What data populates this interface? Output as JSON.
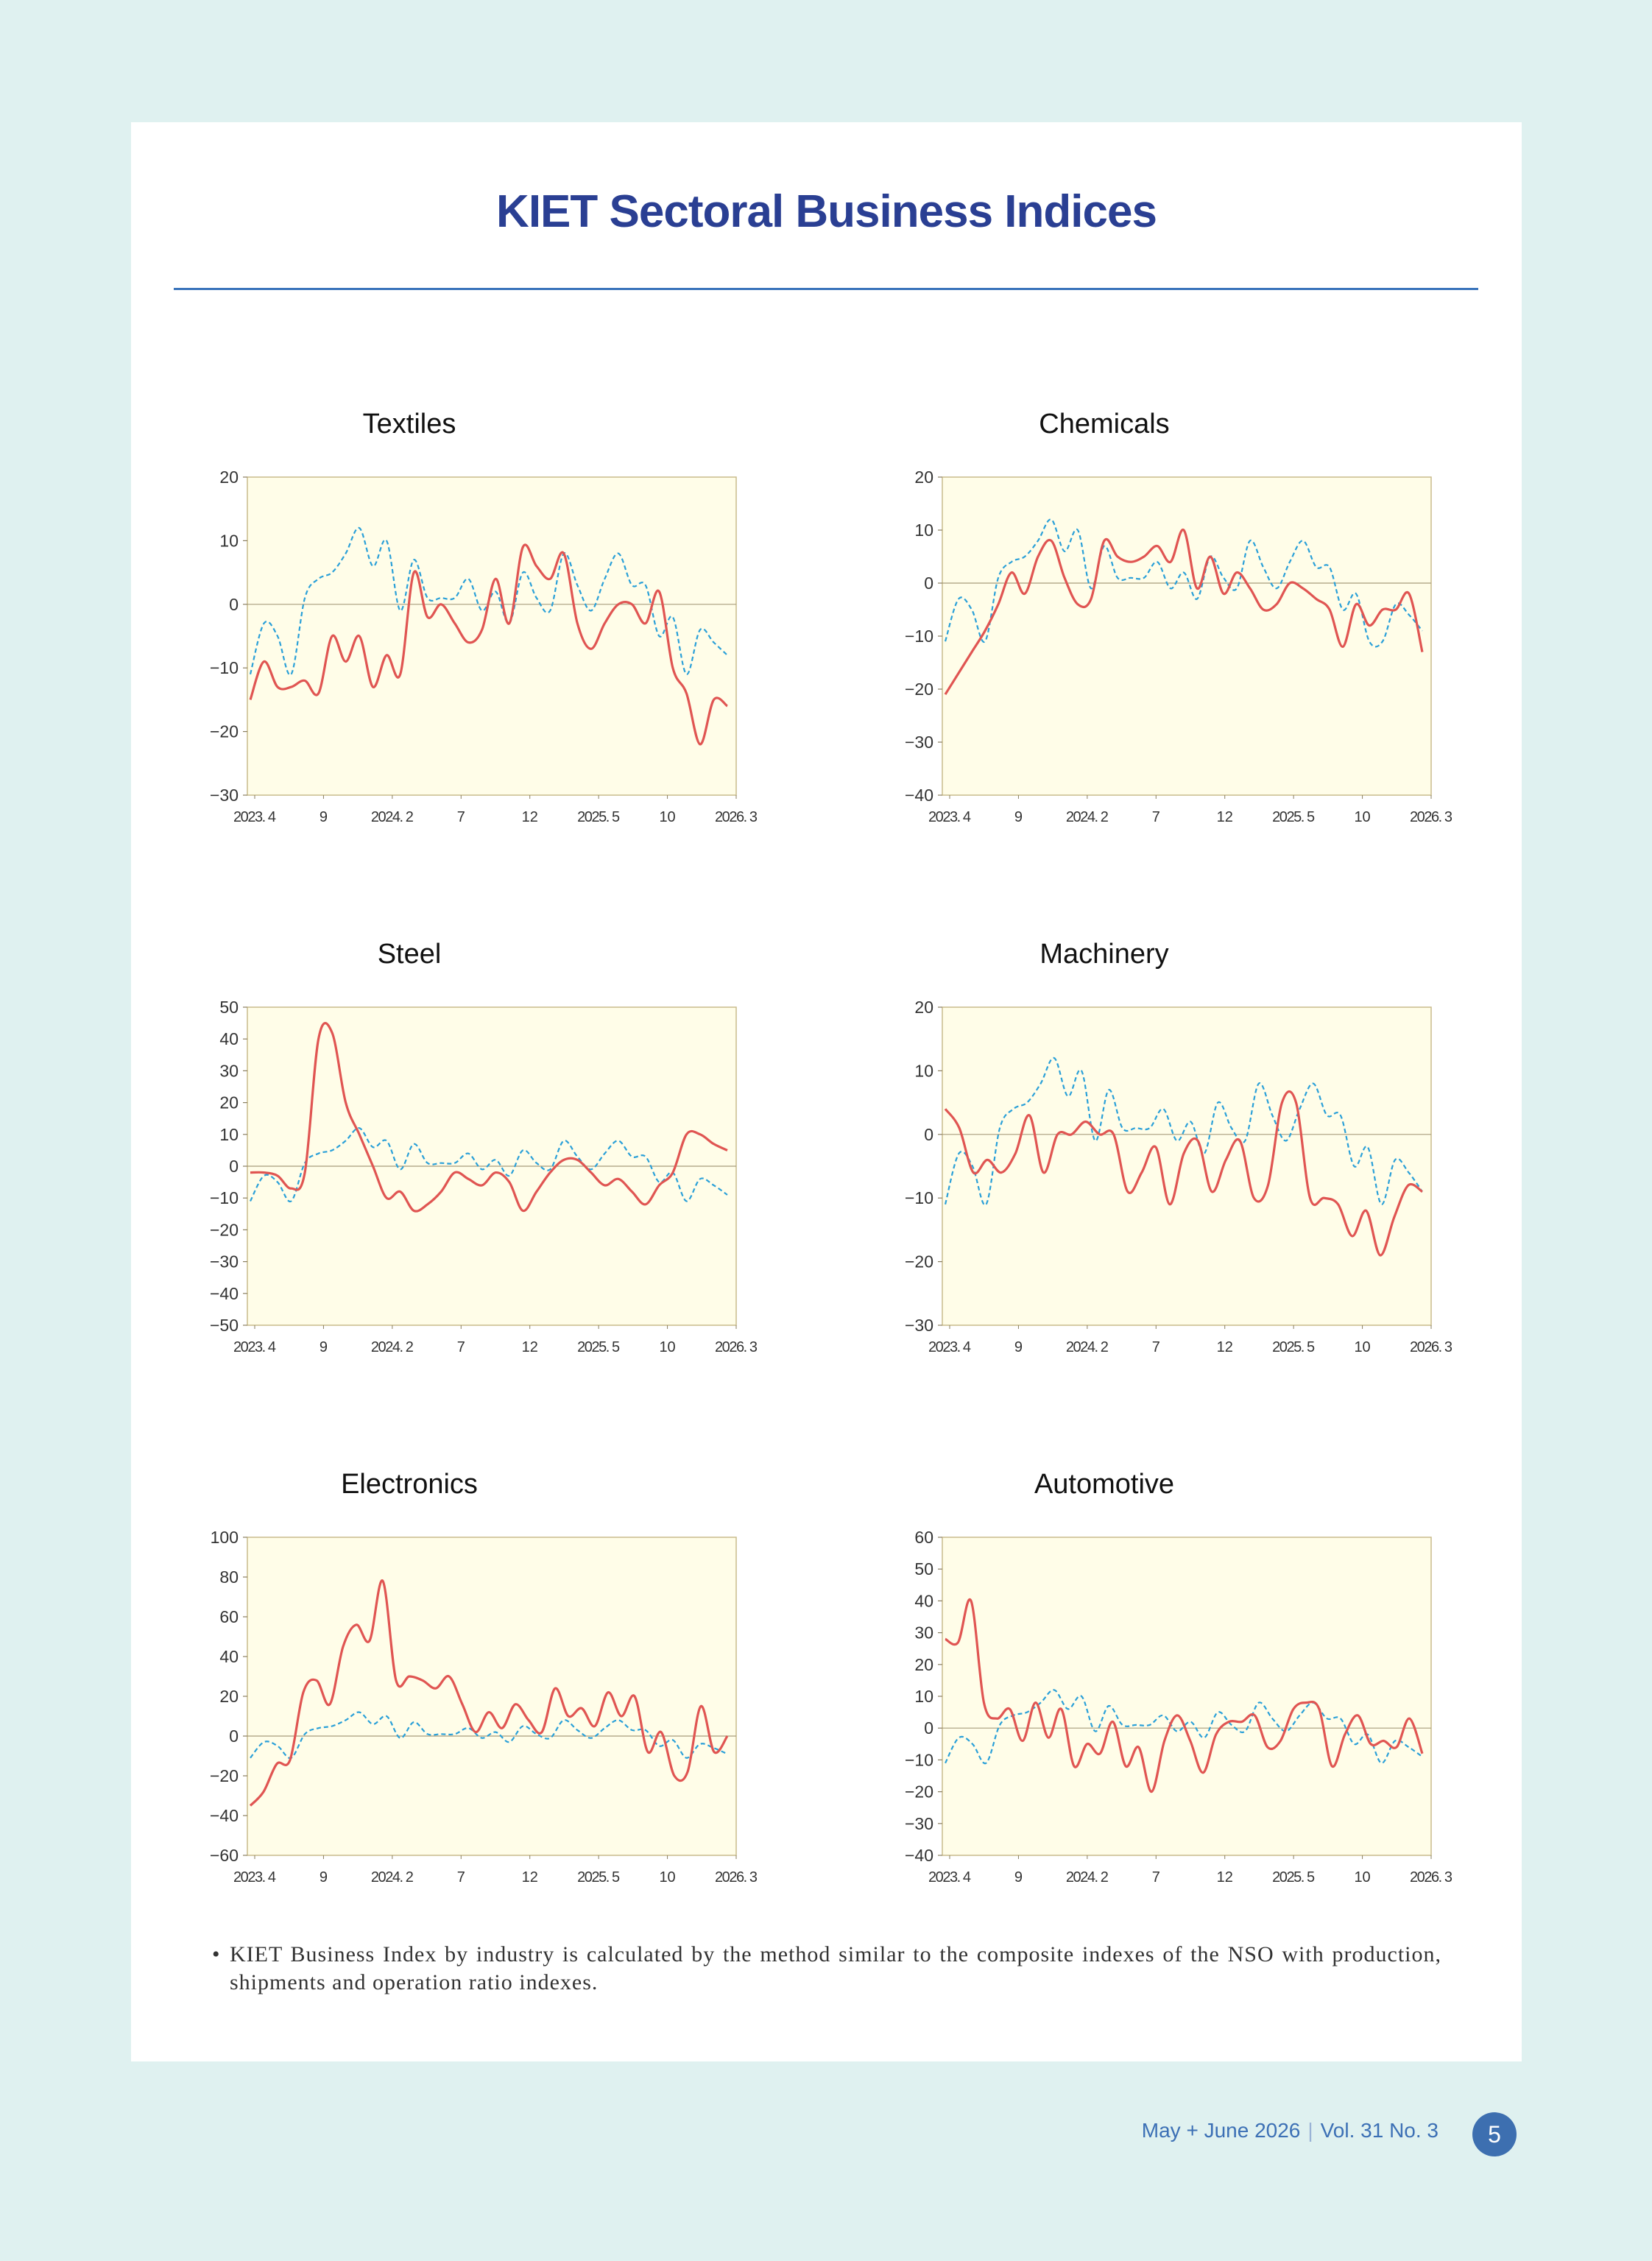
{
  "page": {
    "title": "KIET Sectoral Business Indices",
    "note_bullet": "•",
    "note": "KIET Business Index by industry is calculated by the method similar to the composite indexes of the NSO with production, shipments and operation ratio indexes.",
    "footer": {
      "issue": "May + June 2026",
      "volume": "Vol. 31  No. 3"
    },
    "page_number": "5"
  },
  "colors": {
    "title": "#2a3f93",
    "rule": "#3a74bb",
    "plot_background": "#fffde8",
    "industry_line": "#e05552",
    "reference_line": "#2aa0d8"
  },
  "chart_data": [
    {
      "type": "line",
      "title": "Textiles",
      "x_tick_labels": [
        "2023. 4",
        "9",
        "2024. 2",
        "7",
        "12",
        "2025. 5",
        "10",
        "2026. 3"
      ],
      "ylim": [
        -30,
        20
      ],
      "yticks": [
        -30,
        -20,
        -10,
        0,
        10,
        20
      ],
      "series": [
        {
          "style": "solid",
          "values": [
            -15,
            -9,
            -13,
            -13,
            -12,
            -14,
            -5,
            -9,
            -5,
            -13,
            -8,
            -11,
            5,
            -2,
            0,
            -3,
            -6,
            -4,
            4,
            -3,
            9,
            6,
            4,
            8,
            -3,
            -7,
            -3,
            0,
            0,
            -3,
            2,
            -10,
            -14,
            -22,
            -15,
            -16
          ]
        },
        {
          "style": "dashed",
          "values": [
            -11,
            -3,
            -5,
            -11,
            1,
            4,
            5,
            8,
            12,
            6,
            10,
            -1,
            7,
            1,
            1,
            1,
            4,
            -1,
            2,
            -3,
            5,
            1,
            -1,
            8,
            3,
            -1,
            4,
            8,
            3,
            3,
            -5,
            -2,
            -11,
            -4,
            -6,
            -8
          ]
        }
      ]
    },
    {
      "type": "line",
      "title": "Chemicals",
      "x_tick_labels": [
        "2023. 4",
        "9",
        "2024. 2",
        "7",
        "12",
        "2025. 5",
        "10",
        "2026. 3"
      ],
      "ylim": [
        -40,
        20
      ],
      "yticks": [
        -40,
        -30,
        -20,
        -10,
        0,
        10,
        20
      ],
      "series": [
        {
          "style": "solid",
          "values": [
            -21,
            -17,
            -13,
            -9,
            -4,
            2,
            -2,
            5,
            8,
            1,
            -4,
            -3,
            8,
            5,
            4,
            5,
            7,
            4,
            10,
            -1,
            5,
            -2,
            2,
            -1,
            -5,
            -4,
            0,
            -1,
            -3,
            -5,
            -12,
            -4,
            -8,
            -5,
            -5,
            -2,
            -13
          ]
        },
        {
          "style": "dashed",
          "values": [
            -11,
            -3,
            -5,
            -11,
            1,
            4,
            5,
            8,
            12,
            6,
            10,
            -1,
            7,
            1,
            1,
            1,
            4,
            -1,
            2,
            -3,
            5,
            1,
            -1,
            8,
            3,
            -1,
            4,
            8,
            3,
            3,
            -5,
            -2,
            -11,
            -11,
            -4,
            -6,
            -9
          ]
        }
      ]
    },
    {
      "type": "line",
      "title": "Steel",
      "x_tick_labels": [
        "2023. 4",
        "9",
        "2024. 2",
        "7",
        "12",
        "2025. 5",
        "10",
        "2026. 3"
      ],
      "ylim": [
        -50,
        50
      ],
      "yticks": [
        -50,
        -40,
        -30,
        -20,
        -10,
        0,
        10,
        20,
        30,
        40,
        50
      ],
      "series": [
        {
          "style": "solid",
          "values": [
            -2,
            -2,
            -3,
            -7,
            -2,
            40,
            42,
            20,
            10,
            0,
            -10,
            -8,
            -14,
            -12,
            -8,
            -2,
            -4,
            -6,
            -2,
            -5,
            -14,
            -8,
            -2,
            2,
            2,
            -2,
            -6,
            -4,
            -8,
            -12,
            -6,
            -2,
            10,
            10,
            7,
            5
          ]
        },
        {
          "style": "dashed",
          "values": [
            -11,
            -3,
            -5,
            -11,
            1,
            4,
            5,
            8,
            12,
            6,
            8,
            -1,
            7,
            1,
            1,
            1,
            4,
            -1,
            2,
            -3,
            5,
            1,
            -1,
            8,
            3,
            -1,
            4,
            8,
            3,
            3,
            -5,
            -2,
            -11,
            -4,
            -6,
            -9
          ]
        }
      ]
    },
    {
      "type": "line",
      "title": "Machinery",
      "x_tick_labels": [
        "2023. 4",
        "9",
        "2024. 2",
        "7",
        "12",
        "2025. 5",
        "10",
        "2026. 3"
      ],
      "ylim": [
        -30,
        20
      ],
      "yticks": [
        -30,
        -20,
        -10,
        0,
        10,
        20
      ],
      "series": [
        {
          "style": "solid",
          "values": [
            4,
            1,
            -6,
            -4,
            -6,
            -3,
            3,
            -6,
            0,
            0,
            2,
            0,
            0,
            -9,
            -6,
            -2,
            -11,
            -3,
            -1,
            -9,
            -4,
            -1,
            -10,
            -8,
            5,
            5,
            -10,
            -10,
            -11,
            -16,
            -12,
            -19,
            -13,
            -8,
            -9
          ]
        },
        {
          "style": "dashed",
          "values": [
            -11,
            -3,
            -5,
            -11,
            1,
            4,
            5,
            8,
            12,
            6,
            10,
            -1,
            7,
            1,
            1,
            1,
            4,
            -1,
            2,
            -3,
            5,
            1,
            -1,
            8,
            3,
            -1,
            4,
            8,
            3,
            3,
            -5,
            -2,
            -11,
            -4,
            -6,
            -9
          ]
        }
      ]
    },
    {
      "type": "line",
      "title": "Electronics",
      "x_tick_labels": [
        "2023. 4",
        "9",
        "2024. 2",
        "7",
        "12",
        "2025. 5",
        "10",
        "2026. 3"
      ],
      "ylim": [
        -60,
        100
      ],
      "yticks": [
        -60,
        -40,
        -20,
        0,
        20,
        40,
        60,
        80,
        100
      ],
      "series": [
        {
          "style": "solid",
          "values": [
            -35,
            -28,
            -14,
            -12,
            22,
            28,
            16,
            45,
            56,
            48,
            78,
            28,
            30,
            28,
            24,
            30,
            16,
            2,
            12,
            4,
            16,
            8,
            2,
            24,
            10,
            14,
            5,
            22,
            10,
            20,
            -8,
            2,
            -20,
            -18,
            15,
            -8,
            0
          ]
        },
        {
          "style": "dashed",
          "values": [
            -11,
            -3,
            -5,
            -11,
            1,
            4,
            5,
            8,
            12,
            6,
            10,
            -1,
            7,
            1,
            1,
            1,
            4,
            -1,
            2,
            -3,
            5,
            1,
            -1,
            8,
            3,
            -1,
            4,
            8,
            3,
            3,
            -5,
            -2,
            -11,
            -4,
            -6,
            -9
          ]
        }
      ]
    },
    {
      "type": "line",
      "title": "Automotive",
      "x_tick_labels": [
        "2023. 4",
        "9",
        "2024. 2",
        "7",
        "12",
        "2025. 5",
        "10",
        "2026. 3"
      ],
      "ylim": [
        -40,
        60
      ],
      "yticks": [
        -40,
        -30,
        -20,
        -10,
        0,
        10,
        20,
        30,
        40,
        50,
        60
      ],
      "series": [
        {
          "style": "solid",
          "values": [
            28,
            27,
            40,
            8,
            3,
            6,
            -4,
            8,
            -3,
            6,
            -12,
            -5,
            -8,
            2,
            -12,
            -6,
            -20,
            -4,
            4,
            -4,
            -14,
            -2,
            2,
            2,
            4,
            -6,
            -4,
            6,
            8,
            6,
            -12,
            -2,
            4,
            -5,
            -4,
            -6,
            3,
            -8
          ]
        },
        {
          "style": "dashed",
          "values": [
            -11,
            -3,
            -5,
            -11,
            1,
            4,
            5,
            8,
            12,
            6,
            10,
            -1,
            7,
            1,
            1,
            1,
            4,
            -1,
            2,
            -3,
            5,
            1,
            -1,
            8,
            3,
            -1,
            4,
            8,
            3,
            3,
            -5,
            -2,
            -11,
            -4,
            -6,
            -9
          ]
        }
      ]
    }
  ]
}
